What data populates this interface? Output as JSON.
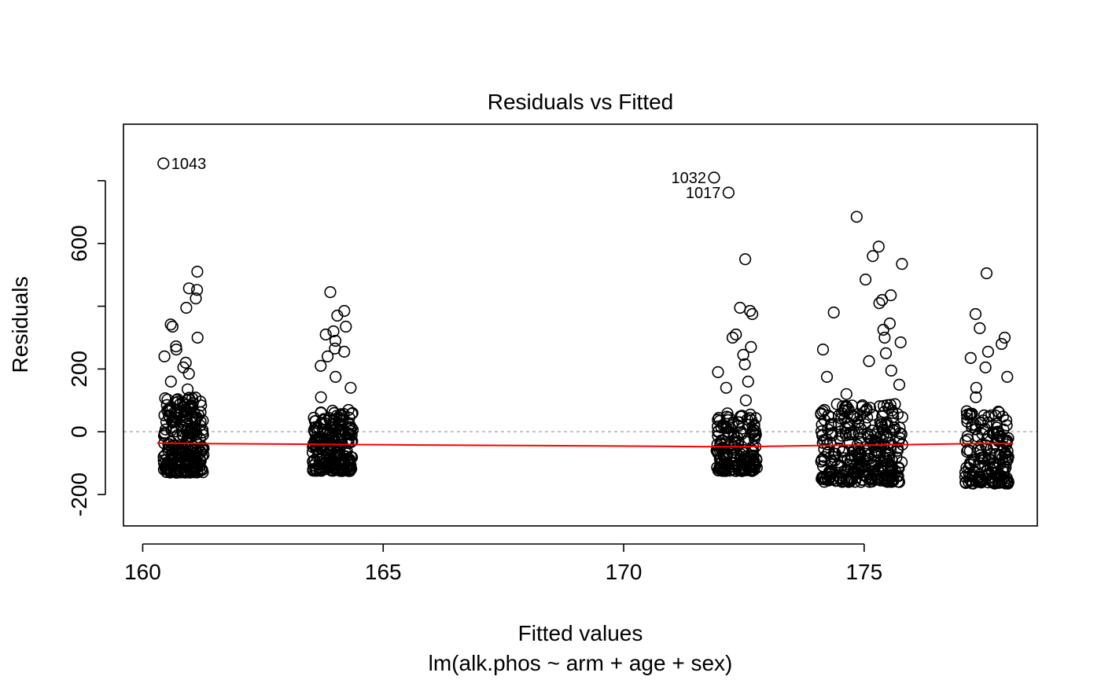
{
  "chart_data": {
    "type": "scatter",
    "title": "Residuals vs Fitted",
    "xlabel": "Fitted values",
    "sublabel": "lm(alk.phos ~ arm + age + sex)",
    "ylabel": "Residuals",
    "xlim": [
      159.6,
      178.6
    ],
    "ylim": [
      -300,
      980
    ],
    "xticks": [
      160,
      165,
      170,
      175
    ],
    "yticks": [
      -200,
      0,
      200,
      600
    ],
    "ytick_marks": [
      -200,
      0,
      200,
      400,
      600,
      800
    ],
    "grid": false,
    "reference_line": {
      "y": 0,
      "color": "#aaaaaa",
      "style": "dashed"
    },
    "smooth_line": {
      "color": "#ff0000",
      "x": [
        160.3,
        161.5,
        163.8,
        165.5,
        168.0,
        170.5,
        172.3,
        174.5,
        175.5,
        177.6,
        178.1
      ],
      "y": [
        -36,
        -38,
        -40,
        -42,
        -44,
        -46,
        -48,
        -43,
        -42,
        -37,
        -38
      ]
    },
    "clusters": [
      {
        "x_center": 160.85,
        "x_spread": 0.42,
        "count": 260,
        "y_low": -130,
        "y_high": 110,
        "outliers_y": [
          135,
          160,
          185,
          205,
          220,
          240,
          262,
          272,
          300,
          335,
          342,
          395,
          425,
          452,
          457,
          510
        ]
      },
      {
        "x_center": 163.95,
        "x_spread": 0.42,
        "count": 230,
        "y_low": -125,
        "y_high": 70,
        "outliers_y": [
          110,
          140,
          175,
          210,
          240,
          255,
          265,
          290,
          310,
          320,
          335,
          370,
          385,
          445
        ]
      },
      {
        "x_center": 172.35,
        "x_spread": 0.42,
        "count": 180,
        "y_low": -125,
        "y_high": 60,
        "outliers_y": [
          100,
          140,
          160,
          190,
          215,
          245,
          270,
          300,
          310,
          395,
          385,
          375,
          550
        ]
      },
      {
        "x_center": 174.95,
        "x_spread": 0.85,
        "count": 330,
        "y_low": -160,
        "y_high": 90,
        "outliers_y": [
          120,
          150,
          175,
          195,
          225,
          250,
          262,
          285,
          300,
          325,
          345,
          380,
          410,
          420,
          435,
          485,
          535,
          560,
          590,
          685
        ]
      },
      {
        "x_center": 177.55,
        "x_spread": 0.45,
        "count": 170,
        "y_low": -165,
        "y_high": 70,
        "outliers_y": [
          110,
          140,
          175,
          205,
          235,
          255,
          280,
          300,
          330,
          375,
          505
        ]
      }
    ],
    "labeled_points": [
      {
        "x": 160.43,
        "y": 855,
        "label": "1043",
        "side": "right"
      },
      {
        "x": 171.88,
        "y": 810,
        "label": "1032",
        "side": "left"
      },
      {
        "x": 172.18,
        "y": 762,
        "label": "1017",
        "side": "left"
      }
    ]
  }
}
